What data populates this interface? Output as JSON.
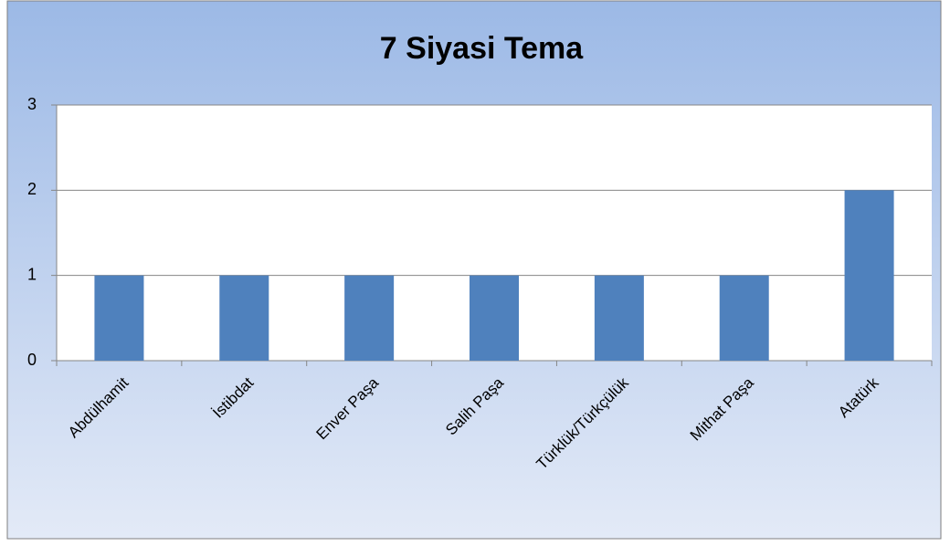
{
  "chart_data": {
    "type": "bar",
    "title": "7 Siyasi Tema",
    "categories": [
      "Abdülhamit",
      "İstibdat",
      "Enver Paşa",
      "Salih Paşa",
      "Türklük/Türkçülük",
      "Mithat Paşa",
      "Atatürk"
    ],
    "values": [
      1,
      1,
      1,
      1,
      1,
      1,
      2
    ],
    "color": "#4f81bd",
    "ylim": [
      0,
      3
    ],
    "yticks": [
      0,
      1,
      2,
      3
    ],
    "grid": true
  }
}
